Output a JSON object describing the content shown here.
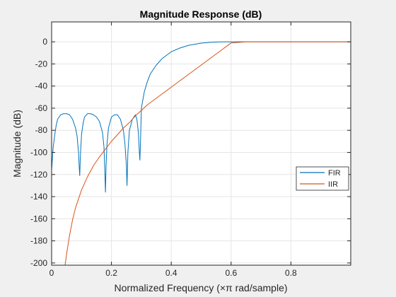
{
  "chart_data": {
    "type": "line",
    "title": "Magnitude Response (dB)",
    "xlabel": "Normalized Frequency (×π rad/sample)",
    "ylabel": "Magnitude (dB)",
    "xlim": [
      0,
      1.0
    ],
    "ylim": [
      -202,
      18
    ],
    "x_ticks": [
      0,
      0.2,
      0.4,
      0.6,
      0.8
    ],
    "x_tick_labels": [
      "0",
      "0.2",
      "0.4",
      "0.6",
      "0.8"
    ],
    "y_ticks": [
      0,
      -20,
      -40,
      -60,
      -80,
      -100,
      -120,
      -140,
      -160,
      -180,
      -200
    ],
    "y_tick_labels": [
      "0",
      "-20",
      "-40",
      "-60",
      "-80",
      "-100",
      "-120",
      "-140",
      "-160",
      "-180",
      "-200"
    ],
    "grid": true,
    "legend": "lower-right",
    "colors": {
      "FIR": "#0072bd",
      "IIR": "#d95319",
      "grid": "#e5e5e5",
      "axes_bg": "#ffffff",
      "figure_bg": "#f0f0f0"
    },
    "series": [
      {
        "name": "FIR",
        "x": [
          0.0,
          0.005,
          0.01,
          0.015,
          0.02,
          0.03,
          0.04,
          0.05,
          0.06,
          0.07,
          0.08,
          0.085,
          0.09,
          0.092,
          0.094,
          0.096,
          0.1,
          0.105,
          0.11,
          0.12,
          0.13,
          0.14,
          0.15,
          0.16,
          0.17,
          0.175,
          0.178,
          0.18,
          0.182,
          0.185,
          0.19,
          0.2,
          0.21,
          0.22,
          0.23,
          0.24,
          0.245,
          0.25,
          0.252,
          0.255,
          0.26,
          0.27,
          0.28,
          0.285,
          0.29,
          0.293,
          0.295,
          0.297,
          0.3,
          0.31,
          0.32,
          0.33,
          0.35,
          0.37,
          0.4,
          0.43,
          0.46,
          0.5,
          0.53,
          0.56,
          0.58,
          0.6,
          0.62,
          0.65,
          0.7,
          0.75,
          0.8,
          0.85,
          0.9,
          0.95,
          1.0
        ],
        "y": [
          -116,
          -96,
          -85,
          -76,
          -70,
          -66,
          -65,
          -65,
          -66,
          -70,
          -78,
          -85,
          -100,
          -112,
          -121,
          -104,
          -84,
          -74,
          -68,
          -65,
          -65,
          -66,
          -68,
          -72,
          -82,
          -95,
          -118,
          -136,
          -112,
          -93,
          -78,
          -68,
          -66,
          -66,
          -70,
          -80,
          -92,
          -112,
          -130,
          -100,
          -80,
          -70,
          -66,
          -70,
          -82,
          -98,
          -107,
          -92,
          -60,
          -45,
          -36,
          -29,
          -21,
          -15,
          -9,
          -5.5,
          -3,
          -1.2,
          -0.5,
          -0.1,
          0,
          0,
          0,
          0,
          0,
          0,
          0,
          0,
          0,
          0,
          0
        ]
      },
      {
        "name": "IIR",
        "x": [
          0.045,
          0.05,
          0.06,
          0.07,
          0.08,
          0.1,
          0.12,
          0.14,
          0.16,
          0.18,
          0.2,
          0.22,
          0.24,
          0.26,
          0.28,
          0.3,
          0.32,
          0.35,
          0.38,
          0.4,
          0.42,
          0.45,
          0.48,
          0.5,
          0.53,
          0.55,
          0.57,
          0.58,
          0.6,
          0.65,
          0.7,
          0.8,
          0.9,
          1.0
        ],
        "y": [
          -202,
          -192,
          -175,
          -161,
          -150,
          -134,
          -122,
          -112,
          -104,
          -97,
          -90,
          -84,
          -78,
          -73,
          -67,
          -62,
          -57,
          -51,
          -45,
          -41,
          -37,
          -31,
          -25,
          -21,
          -15,
          -11,
          -7,
          -5,
          -1,
          0,
          0,
          0,
          0,
          0
        ]
      }
    ]
  }
}
